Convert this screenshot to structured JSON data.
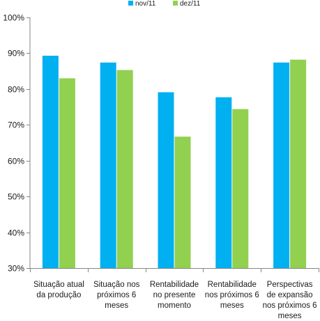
{
  "chart_data": {
    "type": "bar",
    "categories": [
      [
        "Situação atual",
        "da produção"
      ],
      [
        "Situação nos",
        "próximos 6",
        "meses"
      ],
      [
        "Rentabilidade",
        "no presente",
        "momento"
      ],
      [
        "Rentabilidade",
        "nos próximos 6",
        "meses"
      ],
      [
        "Perspectivas",
        "de expansão",
        "nos próximos 6",
        "meses"
      ]
    ],
    "series": [
      {
        "name": "nov/11",
        "color": "#00b0f0",
        "values": [
          89.3,
          87.4,
          79.1,
          77.7,
          87.4
        ]
      },
      {
        "name": "dez/11",
        "color": "#92d050",
        "values": [
          83.0,
          85.3,
          66.7,
          74.4,
          88.2
        ]
      }
    ],
    "ylim": [
      30,
      100
    ],
    "yticks": [
      30,
      40,
      50,
      60,
      70,
      80,
      90,
      100
    ],
    "ytick_labels": [
      "30%",
      "40%",
      "50%",
      "60%",
      "70%",
      "80%",
      "90%",
      "100%"
    ],
    "grid": false,
    "legend_position": "top-center"
  }
}
